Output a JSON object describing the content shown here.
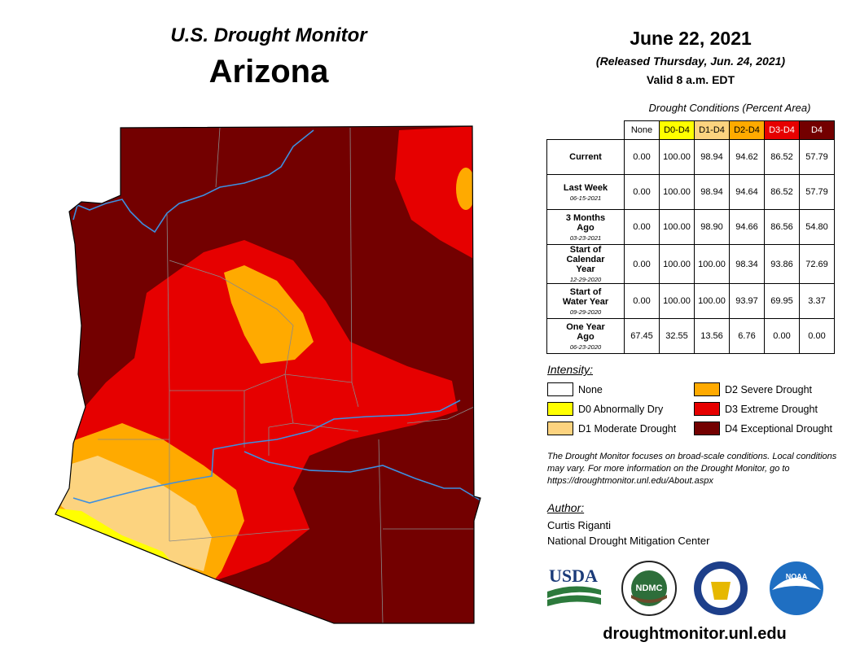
{
  "header": {
    "title": "U.S. Drought Monitor",
    "state": "Arizona",
    "date": "June 22, 2021",
    "released": "(Released Thursday, Jun. 24, 2021)",
    "valid": "Valid 8 a.m. EDT"
  },
  "table": {
    "caption": "Drought Conditions (Percent Area)",
    "columns": [
      {
        "label": "None",
        "color": "#ffffff"
      },
      {
        "label": "D0-D4",
        "color": "#ffff00"
      },
      {
        "label": "D1-D4",
        "color": "#fcd37f"
      },
      {
        "label": "D2-D4",
        "color": "#ffaa00"
      },
      {
        "label": "D3-D4",
        "color": "#e60000"
      },
      {
        "label": "D4",
        "color": "#730000"
      }
    ],
    "rows": [
      {
        "label": "Current",
        "values": [
          "0.00",
          "100.00",
          "98.94",
          "94.62",
          "86.52",
          "57.79"
        ]
      },
      {
        "label": "Last Week",
        "date": "06-15-2021",
        "values": [
          "0.00",
          "100.00",
          "98.94",
          "94.64",
          "86.52",
          "57.79"
        ]
      },
      {
        "label": "3 Months Ago",
        "date": "03-23-2021",
        "values": [
          "0.00",
          "100.00",
          "98.90",
          "94.66",
          "86.56",
          "54.80"
        ]
      },
      {
        "label": "Start of Calendar Year",
        "date": "12-29-2020",
        "values": [
          "0.00",
          "100.00",
          "100.00",
          "98.34",
          "93.86",
          "72.69"
        ]
      },
      {
        "label": "Start of Water Year",
        "date": "09-29-2020",
        "values": [
          "0.00",
          "100.00",
          "100.00",
          "93.97",
          "69.95",
          "3.37"
        ]
      },
      {
        "label": "One Year Ago",
        "date": "06-23-2020",
        "values": [
          "67.45",
          "32.55",
          "13.56",
          "6.76",
          "0.00",
          "0.00"
        ]
      }
    ]
  },
  "legend": {
    "title": "Intensity:",
    "items": [
      {
        "label": "None",
        "color": "#ffffff"
      },
      {
        "label": "D0 Abnormally Dry",
        "color": "#ffff00"
      },
      {
        "label": "D1 Moderate Drought",
        "color": "#fcd37f"
      },
      {
        "label": "D2 Severe Drought",
        "color": "#ffaa00"
      },
      {
        "label": "D3 Extreme Drought",
        "color": "#e60000"
      },
      {
        "label": "D4 Exceptional Drought",
        "color": "#730000"
      }
    ]
  },
  "note": "The Drought Monitor focuses on broad-scale conditions. Local conditions may vary. For more information on the Drought Monitor, go to https://droughtmonitor.unl.edu/About.aspx",
  "author": {
    "title": "Author:",
    "name": "Curtis Riganti",
    "org": "National Drought Mitigation Center"
  },
  "logos": [
    "USDA",
    "NDMC",
    "NOAA"
  ],
  "url": "droughtmonitor.unl.edu"
}
